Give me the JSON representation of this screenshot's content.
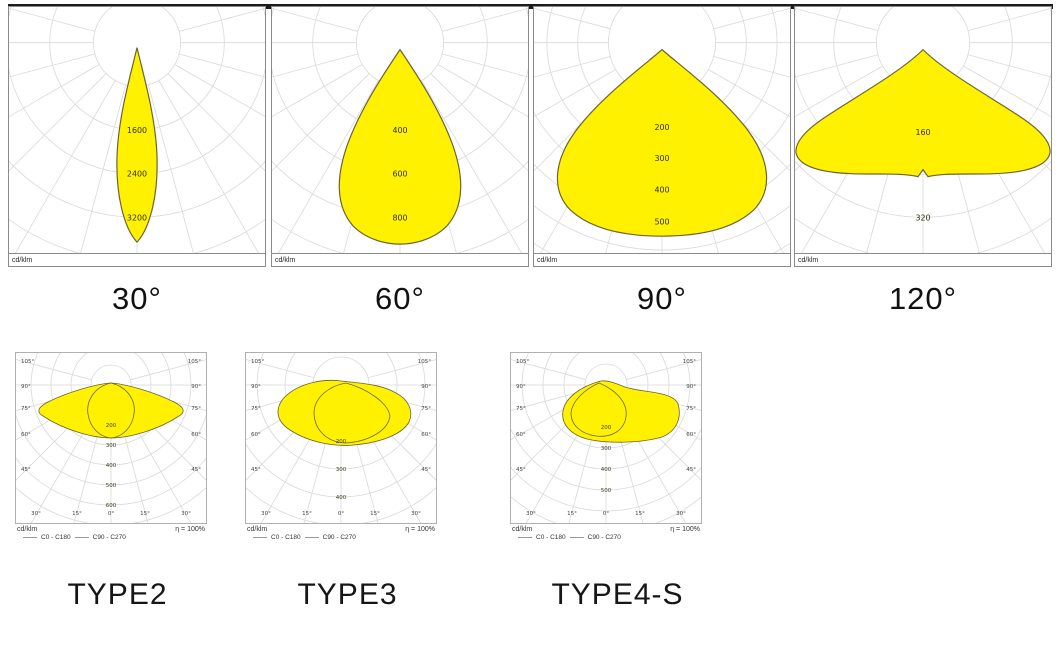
{
  "colors": {
    "lobe_fill": "#FFF100",
    "lobe_stroke": "#6b6430",
    "grid": "#d9d9d9",
    "panel_border": "#8a8a8a",
    "top_bar": "#1b1b1b"
  },
  "beam_panels": [
    {
      "angle_label": "30°",
      "unit": "cd/klm",
      "ring_values": [
        "1600",
        "2400",
        "3200"
      ]
    },
    {
      "angle_label": "60°",
      "unit": "cd/klm",
      "ring_values": [
        "400",
        "600",
        "800"
      ]
    },
    {
      "angle_label": "90°",
      "unit": "cd/klm",
      "ring_values": [
        "200",
        "300",
        "400",
        "500"
      ]
    },
    {
      "angle_label": "120°",
      "unit": "cd/klm",
      "ring_values": [
        "160",
        "320"
      ]
    }
  ],
  "type_panels": [
    {
      "label": "TYPE2",
      "unit": "cd/klm",
      "efficiency": "η = 100%",
      "legend": [
        "C0 - C180",
        "C90 - C270"
      ],
      "ring_values": [
        "200",
        "300",
        "400",
        "500",
        "600"
      ],
      "side_angle_labels": [
        "105°",
        "90°",
        "75°",
        "60°",
        "45°"
      ],
      "bottom_angle_labels": [
        "30°",
        "15°",
        "0°",
        "15°",
        "30°"
      ]
    },
    {
      "label": "TYPE3",
      "unit": "cd/klm",
      "efficiency": "η = 100%",
      "legend": [
        "C0 - C180",
        "C90 - C270"
      ],
      "ring_values": [
        "200",
        "300",
        "400"
      ],
      "side_angle_labels": [
        "105°",
        "90°",
        "75°",
        "60°",
        "45°"
      ],
      "bottom_angle_labels": [
        "30°",
        "15°",
        "0°",
        "15°",
        "30°"
      ]
    },
    {
      "label": "TYPE4-S",
      "unit": "cd/klm",
      "efficiency": "η = 100%",
      "legend": [
        "C0 - C180",
        "C90 - C270"
      ],
      "ring_values": [
        "200",
        "300",
        "400",
        "500"
      ],
      "side_angle_labels": [
        "105°",
        "90°",
        "75°",
        "60°",
        "45°"
      ],
      "bottom_angle_labels": [
        "30°",
        "15°",
        "0°",
        "15°",
        "30°"
      ]
    }
  ],
  "chart_data": [
    {
      "type": "polar",
      "title": "30°",
      "unit": "cd/klm",
      "beam_angle_deg": 30,
      "ring_labels": [
        1600,
        2400,
        3200
      ],
      "peak_cd_per_klm_approx": 3600,
      "shape": "narrow vertical ellipse lobe, peak at nadir (0°)"
    },
    {
      "type": "polar",
      "title": "60°",
      "unit": "cd/klm",
      "beam_angle_deg": 60,
      "ring_labels": [
        400,
        600,
        800
      ],
      "peak_cd_per_klm_approx": 900,
      "shape": "teardrop lobe, peak at nadir"
    },
    {
      "type": "polar",
      "title": "90°",
      "unit": "cd/klm",
      "beam_angle_deg": 90,
      "ring_labels": [
        200,
        300,
        400,
        500
      ],
      "peak_cd_per_klm_approx": 560,
      "shape": "wide onion-shaped lobe, peak at nadir"
    },
    {
      "type": "polar",
      "title": "120°",
      "unit": "cd/klm",
      "beam_angle_deg": 120,
      "ring_labels": [
        160,
        320
      ],
      "peak_cd_per_klm_approx": 330,
      "shape": "very wide batwing fan with small notch at nadir"
    },
    {
      "type": "polar",
      "title": "TYPE2",
      "unit": "cd/klm",
      "efficiency_pct": 100,
      "curves": [
        "C0 - C180",
        "C90 - C270"
      ],
      "ring_labels": [
        200,
        300,
        400,
        500,
        600
      ],
      "angle_ticks_deg": [
        0,
        15,
        30,
        45,
        60,
        75,
        90,
        105
      ],
      "shape": "wide lateral lobe to ~±70° (C0-C180) with round ~±30° lobe (C90-C270), max ~250"
    },
    {
      "type": "polar",
      "title": "TYPE3",
      "unit": "cd/klm",
      "efficiency_pct": 100,
      "curves": [
        "C0 - C180",
        "C90 - C270"
      ],
      "ring_labels": [
        200,
        300,
        400
      ],
      "angle_ticks_deg": [
        0,
        15,
        30,
        45,
        60,
        75,
        90,
        105
      ],
      "shape": "broad irregular overlapping lobes reaching ~±65°, max ~250"
    },
    {
      "type": "polar",
      "title": "TYPE4-S",
      "unit": "cd/klm",
      "efficiency_pct": 100,
      "curves": [
        "C0 - C180",
        "C90 - C270"
      ],
      "ring_labels": [
        200,
        300,
        400,
        500
      ],
      "angle_ticks_deg": [
        0,
        15,
        30,
        45,
        60,
        75,
        90,
        105
      ],
      "shape": "asymmetric forward-throw lobe shifted to one side, max ~280"
    }
  ]
}
